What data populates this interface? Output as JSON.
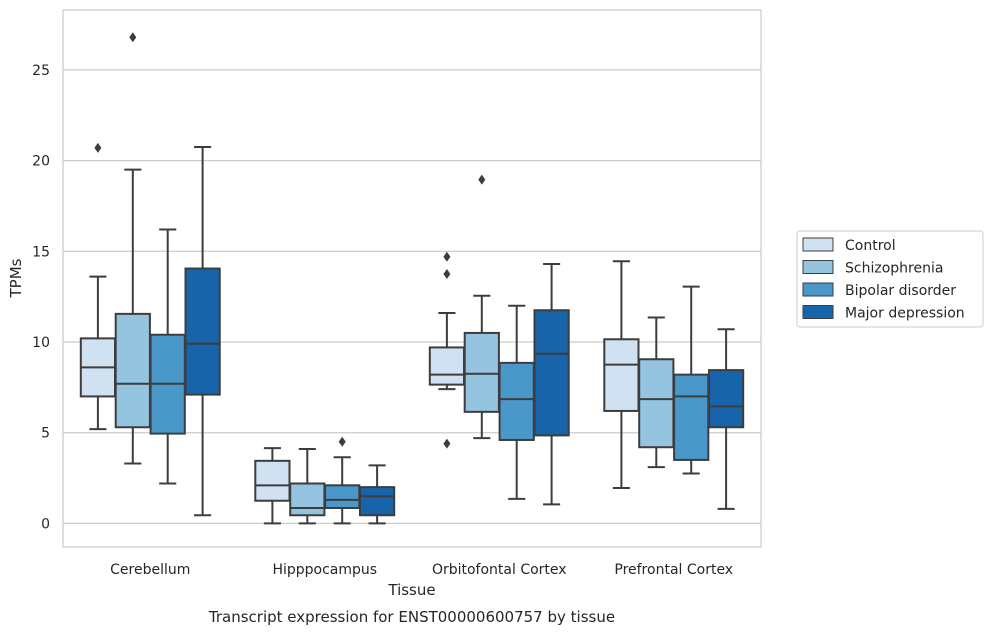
{
  "chart_data": {
    "type": "boxplot",
    "title": "",
    "caption": "Transcript expression for ENST00000600757 by tissue",
    "xlabel": "Tissue",
    "ylabel": "TPMs",
    "ylim": [
      -1.3,
      28.3
    ],
    "yticks": [
      0,
      5,
      10,
      15,
      20,
      25
    ],
    "grid": "horizontal",
    "legend_position": "right",
    "categories": [
      "Cerebellum",
      "Hipppocampus",
      "Orbitofontal Cortex",
      "Prefrontal Cortex"
    ],
    "series": [
      {
        "name": "Control",
        "color": "#d0e1f2",
        "boxes": [
          {
            "whislo": 5.2,
            "q1": 7.0,
            "med": 8.6,
            "q3": 10.2,
            "whishi": 13.6,
            "fliers": [
              20.7
            ]
          },
          {
            "whislo": 0.0,
            "q1": 1.25,
            "med": 2.1,
            "q3": 3.45,
            "whishi": 4.15,
            "fliers": []
          },
          {
            "whislo": 7.4,
            "q1": 7.65,
            "med": 8.2,
            "q3": 9.7,
            "whishi": 11.6,
            "fliers": [
              4.4,
              13.75,
              14.7
            ]
          },
          {
            "whislo": 1.95,
            "q1": 6.2,
            "med": 8.75,
            "q3": 10.15,
            "whishi": 14.45,
            "fliers": []
          }
        ]
      },
      {
        "name": "Schizophrenia",
        "color": "#94c4df",
        "boxes": [
          {
            "whislo": 3.3,
            "q1": 5.3,
            "med": 7.7,
            "q3": 11.55,
            "whishi": 19.5,
            "fliers": [
              26.8
            ]
          },
          {
            "whislo": 0.0,
            "q1": 0.45,
            "med": 0.85,
            "q3": 2.2,
            "whishi": 4.1,
            "fliers": []
          },
          {
            "whislo": 4.7,
            "q1": 6.15,
            "med": 8.25,
            "q3": 10.5,
            "whishi": 12.55,
            "fliers": [
              18.95
            ]
          },
          {
            "whislo": 3.1,
            "q1": 4.2,
            "med": 6.85,
            "q3": 9.05,
            "whishi": 11.35,
            "fliers": []
          }
        ]
      },
      {
        "name": "Bipolar disorder",
        "color": "#4a98c9",
        "boxes": [
          {
            "whislo": 2.2,
            "q1": 4.95,
            "med": 7.7,
            "q3": 10.4,
            "whishi": 16.2,
            "fliers": []
          },
          {
            "whislo": 0.0,
            "q1": 0.85,
            "med": 1.3,
            "q3": 2.1,
            "whishi": 3.65,
            "fliers": [
              4.5
            ]
          },
          {
            "whislo": 1.35,
            "q1": 4.6,
            "med": 6.85,
            "q3": 8.85,
            "whishi": 12.0,
            "fliers": []
          },
          {
            "whislo": 2.75,
            "q1": 3.5,
            "med": 7.0,
            "q3": 8.2,
            "whishi": 13.05,
            "fliers": []
          }
        ]
      },
      {
        "name": "Major depression",
        "color": "#1764ab",
        "boxes": [
          {
            "whislo": 0.45,
            "q1": 7.1,
            "med": 9.9,
            "q3": 14.05,
            "whishi": 20.75,
            "fliers": []
          },
          {
            "whislo": 0.0,
            "q1": 0.45,
            "med": 1.5,
            "q3": 2.0,
            "whishi": 3.2,
            "fliers": []
          },
          {
            "whislo": 1.05,
            "q1": 4.85,
            "med": 9.35,
            "q3": 11.75,
            "whishi": 14.3,
            "fliers": []
          },
          {
            "whislo": 0.8,
            "q1": 5.3,
            "med": 6.45,
            "q3": 8.45,
            "whishi": 10.7,
            "fliers": []
          }
        ]
      }
    ]
  }
}
